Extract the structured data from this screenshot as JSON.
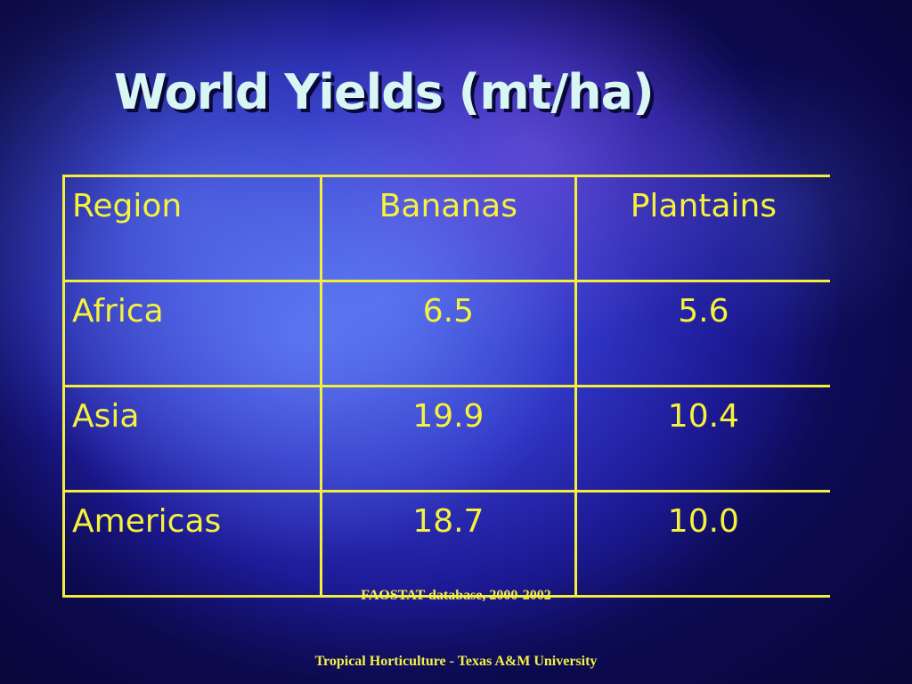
{
  "slide": {
    "title": "World Yields (mt/ha)",
    "source": "FAOSTAT database, 2000-2002",
    "footer": "Tropical Horticulture - Texas A&M University"
  },
  "table": {
    "headers": [
      "Region",
      "Bananas",
      "Plantains"
    ],
    "rows": [
      [
        "Africa",
        "6.5",
        "5.6"
      ],
      [
        "Asia",
        "19.9",
        "10.4"
      ],
      [
        "Americas",
        "18.7",
        "10.0"
      ]
    ]
  },
  "colors": {
    "title": "#d8f6f4",
    "table_text": "#f6f23c",
    "table_border": "#f2ee3a",
    "background": "#2f34c2"
  }
}
